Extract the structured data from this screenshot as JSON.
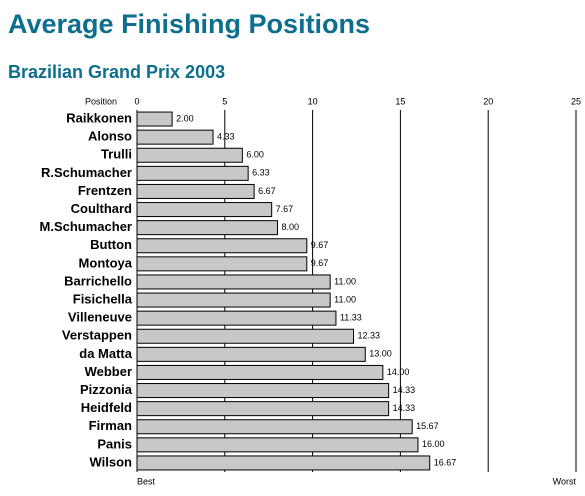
{
  "chart_data": {
    "type": "bar",
    "orientation": "horizontal",
    "title": "Average Finishing Positions",
    "subtitle": "Brazilian Grand Prix 2003",
    "x_label": "Position",
    "x_start_label": "Best",
    "x_end_label": "Worst",
    "categories": [
      "Raikkonen",
      "Alonso",
      "Trulli",
      "R.Schumacher",
      "Frentzen",
      "Coulthard",
      "M.Schumacher",
      "Button",
      "Montoya",
      "Barrichello",
      "Fisichella",
      "Villeneuve",
      "Verstappen",
      "da Matta",
      "Webber",
      "Pizzonia",
      "Heidfeld",
      "Firman",
      "Panis",
      "Wilson"
    ],
    "values": [
      2,
      4.33,
      6,
      6.33,
      6.67,
      7.67,
      8,
      9.67,
      9.67,
      11,
      11,
      11.33,
      12.33,
      13,
      14,
      14.33,
      14.33,
      15.67,
      16,
      16.67
    ],
    "value_labels": [
      "2.00",
      "4.33",
      "6.00",
      "6.33",
      "6.67",
      "7.67",
      "8.00",
      "9.67",
      "9.67",
      "11.00",
      "11.00",
      "11.33",
      "12.33",
      "13.00",
      "14.00",
      "14.33",
      "14.33",
      "15.67",
      "16.00",
      "16.67"
    ],
    "color": "#c8c8c8",
    "xlim": [
      0,
      25
    ],
    "xticks": [
      0,
      5,
      10,
      15,
      20,
      25
    ],
    "grid": true
  }
}
